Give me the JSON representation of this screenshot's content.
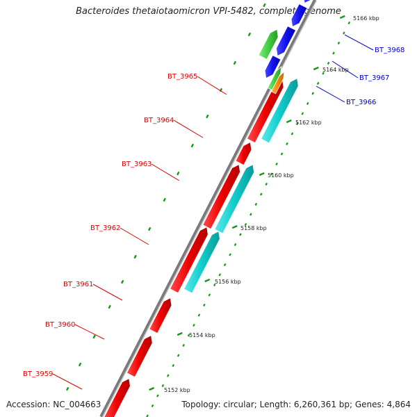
{
  "title": "Bacteroides thetaiotaomicron VPI-5482, complete genome",
  "footer": {
    "accession": "Accession: NC_004663",
    "summary": "Topology: circular; Length: 6,260,361 bp; Genes: 4,864"
  },
  "colors": {
    "backbone": "#909090",
    "forward_gene": "#ee0000",
    "cds_feature": "#11cccc",
    "reverse_gene": "#1111ee",
    "green_feature": "#44cc44",
    "orange_feature": "#ff8800",
    "tick": "#119911",
    "label_red": "#dd0000",
    "label_blue": "#0000cc"
  },
  "ticks": [
    "5152 kbp",
    "5154 kbp",
    "5156 kbp",
    "5158 kbp",
    "5160 kbp",
    "5162 kbp",
    "5164 kbp",
    "5166 kbp"
  ],
  "gene_labels": [
    "BT_3959",
    "BT_3960",
    "BT_3961",
    "BT_3962",
    "BT_3963",
    "BT_3964",
    "BT_3965",
    "BT_3966",
    "BT_3967",
    "BT_3968"
  ]
}
